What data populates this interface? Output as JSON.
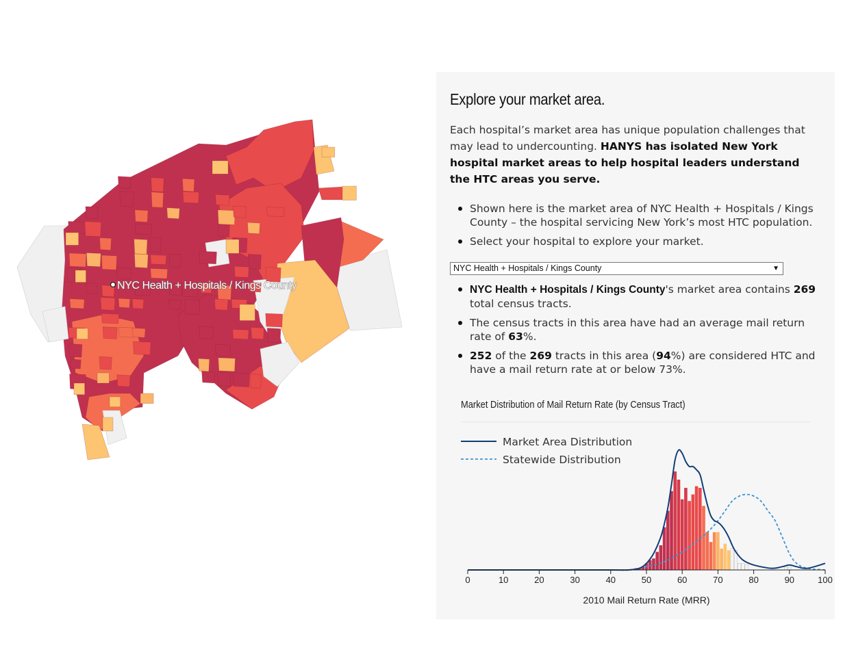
{
  "map": {
    "hospital_label": "NYC Health + Hospitals / Kings County",
    "colors": {
      "dark": "#c0314f",
      "red": "#e84b4b",
      "orange": "#f46d50",
      "light_orange": "#fbb468",
      "yellow": "#fdc471",
      "gray": "#f0f0f0"
    }
  },
  "panel": {
    "title": "Explore your market area.",
    "intro_plain": "Each hospital’s market area has unique population challenges that may lead to undercounting. ",
    "intro_bold": "HANYS has isolated New York hospital market areas to help hospital leaders understand the HTC areas you serve.",
    "bullet_1": "Shown here is the market area of NYC Health + Hospitals / Kings County – the hospital servicing New York’s most HTC population.",
    "bullet_2": "Select your hospital to explore your market.",
    "select_value": "NYC Health + Hospitals / Kings County",
    "stats": {
      "hospital_name": "NYC Health + Hospitals / Kings County",
      "tracts_text_1": "'s market area contains ",
      "total_tracts": "269",
      "tracts_text_2": " total census tracts.",
      "mrr_text_1": "The census tracts in this area have had an average mail return rate of ",
      "avg_mrr": "63",
      "mrr_text_2": "%.",
      "htc_count": "252",
      "htc_text_1": " of the ",
      "htc_total": "269",
      "htc_text_2": " tracts in this area (",
      "htc_pct": "94",
      "htc_text_3": "%) are considered HTC and have a mail return rate at or below 73%."
    }
  },
  "chart_data": {
    "type": "bar",
    "title": "Market Distribution of Mail Return Rate (by Census Tract)",
    "xlabel": "2010 Mail Return Rate (MRR)",
    "ylabel": "",
    "xlim": [
      0,
      100
    ],
    "x_ticks": [
      "0",
      "10",
      "20",
      "30",
      "40",
      "50",
      "60",
      "70",
      "80",
      "90",
      "100"
    ],
    "legend": [
      "Market Area Distribution",
      "Statewide Distribution"
    ],
    "legend_position": "top-left",
    "bars": {
      "x": [
        47,
        48,
        49,
        50,
        51,
        52,
        53,
        54,
        55,
        56,
        57,
        58,
        59,
        60,
        61,
        62,
        63,
        64,
        65,
        66,
        67,
        68,
        69,
        70,
        71,
        72,
        73,
        74,
        75,
        76,
        77,
        78,
        89,
        90
      ],
      "values": [
        1,
        1,
        2,
        4,
        6,
        7,
        11,
        15,
        26,
        36,
        48,
        60,
        55,
        43,
        50,
        42,
        46,
        51,
        50,
        39,
        23,
        17,
        23,
        23,
        13,
        16,
        12,
        13,
        12,
        4,
        4,
        3,
        2,
        2
      ],
      "colors": [
        "#c0314f",
        "#c0314f",
        "#c0314f",
        "#c0314f",
        "#c0314f",
        "#c0314f",
        "#c0314f",
        "#c0314f",
        "#c0314f",
        "#c0314f",
        "#c0314f",
        "#d63b4d",
        "#d63b4d",
        "#d63b4d",
        "#d63b4d",
        "#e84b4b",
        "#e84b4b",
        "#e84b4b",
        "#e84b4b",
        "#f46d50",
        "#f46d50",
        "#f46d50",
        "#f88a55",
        "#fbb468",
        "#fbb468",
        "#fdc471",
        "#fdc471",
        "#f4f4f4",
        "#f4f4f4",
        "#f4f4f4",
        "#f4f4f4",
        "#f4f4f4",
        "#f4f4f4",
        "#f4f4f4"
      ]
    },
    "series": [
      {
        "name": "Market Area Distribution",
        "color": "#123e78",
        "style": "solid",
        "x": [
          0,
          10,
          20,
          30,
          40,
          45,
          48,
          50,
          52,
          54,
          55,
          56,
          57,
          58,
          59,
          60,
          61,
          62,
          63,
          64,
          65,
          66,
          67,
          68,
          69,
          70,
          71,
          72,
          73,
          74,
          75,
          77,
          80,
          85,
          88,
          90,
          92,
          95,
          100
        ],
        "values": [
          0,
          0,
          0,
          0,
          0,
          0,
          1,
          4,
          10,
          20,
          28,
          38,
          52,
          67,
          73,
          71,
          66,
          63,
          63,
          61,
          58,
          49,
          40,
          33,
          30,
          29,
          27,
          24,
          20,
          15,
          11,
          6,
          3,
          1,
          2,
          3,
          2,
          1,
          4
        ]
      },
      {
        "name": "Statewide Distribution",
        "color": "#3d94d1",
        "style": "dashed",
        "x": [
          0,
          20,
          40,
          45,
          50,
          55,
          60,
          65,
          68,
          70,
          72,
          74,
          76,
          78,
          80,
          82,
          84,
          86,
          88,
          90,
          92,
          95,
          100
        ],
        "values": [
          0,
          0,
          0,
          0,
          2,
          5,
          11,
          19,
          25,
          30,
          36,
          42,
          45,
          46,
          45,
          42,
          36,
          30,
          20,
          10,
          4,
          1,
          0
        ]
      }
    ]
  }
}
